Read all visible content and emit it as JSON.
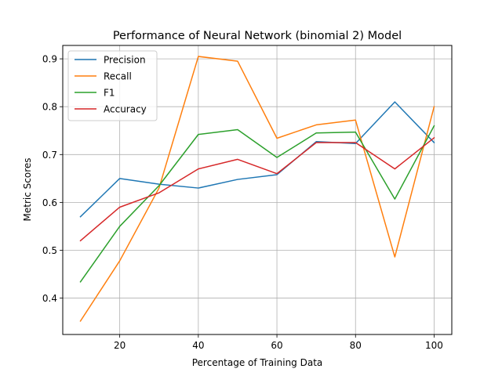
{
  "chart_data": {
    "type": "line",
    "title": "Performance of Neural Network (binomial 2) Model",
    "xlabel": "Percentage of Training Data",
    "ylabel": "Metric Scores",
    "x": [
      10,
      20,
      30,
      40,
      50,
      60,
      70,
      80,
      90,
      100
    ],
    "xticks": [
      "20",
      "40",
      "60",
      "80",
      "100"
    ],
    "yticks": [
      "0.4",
      "0.5",
      "0.6",
      "0.7",
      "0.8",
      "0.9"
    ],
    "xlim": [
      5.5,
      104.5
    ],
    "ylim": [
      0.324,
      0.928
    ],
    "grid": true,
    "legend_position": "top-left",
    "series": [
      {
        "name": "Precision",
        "color": "#1f77b4",
        "values": [
          0.57,
          0.65,
          0.638,
          0.63,
          0.648,
          0.658,
          0.727,
          0.723,
          0.81,
          0.725
        ]
      },
      {
        "name": "Recall",
        "color": "#ff7f0e",
        "values": [
          0.352,
          0.478,
          0.63,
          0.905,
          0.895,
          0.734,
          0.762,
          0.772,
          0.486,
          0.8
        ]
      },
      {
        "name": "F1",
        "color": "#2ca02c",
        "values": [
          0.434,
          0.55,
          0.635,
          0.742,
          0.752,
          0.694,
          0.745,
          0.747,
          0.607,
          0.76
        ]
      },
      {
        "name": "Accuracy",
        "color": "#d62728",
        "values": [
          0.52,
          0.59,
          0.62,
          0.67,
          0.69,
          0.66,
          0.725,
          0.725,
          0.67,
          0.735
        ]
      }
    ]
  }
}
